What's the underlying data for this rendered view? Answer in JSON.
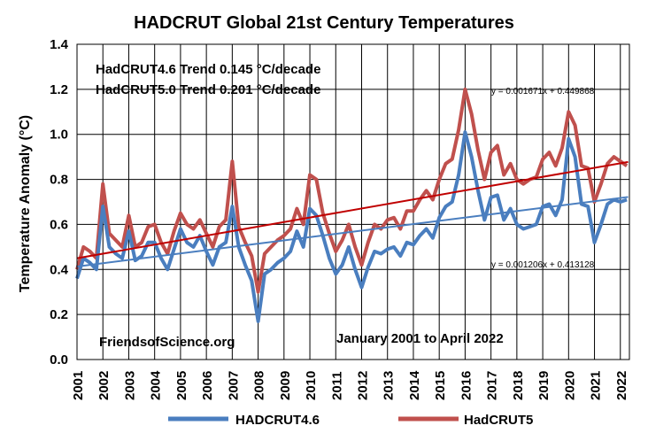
{
  "chart_data": {
    "type": "line",
    "title": "HADCRUT Global 21st Century Temperatures",
    "ylabel": "Temperature Anomaly (°C)",
    "xlabel": "",
    "ylim": [
      0.0,
      1.4
    ],
    "yticks": [
      "0.0",
      "0.2",
      "0.4",
      "0.6",
      "0.8",
      "1.0",
      "1.2",
      "1.4"
    ],
    "xticks": [
      "2001",
      "2002",
      "2003",
      "2004",
      "2005",
      "2006",
      "2007",
      "2008",
      "2009",
      "2010",
      "2011",
      "2012",
      "2013",
      "2014",
      "2015",
      "2016",
      "2017",
      "2018",
      "2019",
      "2020",
      "2021",
      "2022"
    ],
    "grid": true,
    "legend_position": "bottom",
    "annotations": {
      "trend_hadcrut4": "HadCRUT4.6 Trend 0.145 °C/decade",
      "trend_hadcrut5": "HadCRUT5.0 Trend 0.201 °C/decade",
      "source": "FriendsofScience.org",
      "period": "January 2001 to April 2022",
      "eq_hadcrut5": "y = 0.001671x + 0.449868",
      "eq_hadcrut4": "y = 0.001206x + 0.413128"
    },
    "series": [
      {
        "name": "HADCRUT4.6",
        "color": "#4a7ebf",
        "x": [
          2001.0,
          2001.25,
          2001.5,
          2001.75,
          2002.0,
          2002.25,
          2002.5,
          2002.75,
          2003.0,
          2003.25,
          2003.5,
          2003.75,
          2004.0,
          2004.25,
          2004.5,
          2004.75,
          2005.0,
          2005.25,
          2005.5,
          2005.75,
          2006.0,
          2006.25,
          2006.5,
          2006.75,
          2007.0,
          2007.25,
          2007.5,
          2007.75,
          2008.0,
          2008.25,
          2008.5,
          2008.75,
          2009.0,
          2009.25,
          2009.5,
          2009.75,
          2010.0,
          2010.25,
          2010.5,
          2010.75,
          2011.0,
          2011.25,
          2011.5,
          2011.75,
          2012.0,
          2012.25,
          2012.5,
          2012.75,
          2013.0,
          2013.25,
          2013.5,
          2013.75,
          2014.0,
          2014.25,
          2014.5,
          2014.75,
          2015.0,
          2015.25,
          2015.5,
          2015.75,
          2016.0,
          2016.25,
          2016.5,
          2016.75,
          2017.0,
          2017.25,
          2017.5,
          2017.75,
          2018.0,
          2018.25,
          2018.5,
          2018.75,
          2019.0,
          2019.25,
          2019.5,
          2019.75,
          2020.0,
          2020.25,
          2020.5,
          2020.75,
          2021.0,
          2021.25,
          2021.5,
          2021.75,
          2022.0,
          2022.25
        ],
        "values": [
          0.36,
          0.45,
          0.43,
          0.4,
          0.68,
          0.5,
          0.47,
          0.45,
          0.57,
          0.44,
          0.46,
          0.52,
          0.52,
          0.45,
          0.4,
          0.49,
          0.58,
          0.52,
          0.5,
          0.55,
          0.48,
          0.42,
          0.5,
          0.52,
          0.68,
          0.5,
          0.42,
          0.35,
          0.17,
          0.38,
          0.4,
          0.43,
          0.45,
          0.48,
          0.57,
          0.5,
          0.67,
          0.64,
          0.55,
          0.45,
          0.38,
          0.42,
          0.5,
          0.4,
          0.32,
          0.41,
          0.48,
          0.47,
          0.49,
          0.5,
          0.46,
          0.52,
          0.51,
          0.55,
          0.58,
          0.54,
          0.63,
          0.68,
          0.7,
          0.82,
          1.01,
          0.9,
          0.75,
          0.62,
          0.72,
          0.73,
          0.62,
          0.67,
          0.6,
          0.58,
          0.59,
          0.6,
          0.68,
          0.69,
          0.64,
          0.71,
          0.98,
          0.9,
          0.69,
          0.68,
          0.52,
          0.6,
          0.69,
          0.71,
          0.7,
          0.71
        ]
      },
      {
        "name": "HadCRUT5",
        "color": "#c0504d",
        "x": [
          2001.0,
          2001.25,
          2001.5,
          2001.75,
          2002.0,
          2002.25,
          2002.5,
          2002.75,
          2003.0,
          2003.25,
          2003.5,
          2003.75,
          2004.0,
          2004.25,
          2004.5,
          2004.75,
          2005.0,
          2005.25,
          2005.5,
          2005.75,
          2006.0,
          2006.25,
          2006.5,
          2006.75,
          2007.0,
          2007.25,
          2007.5,
          2007.75,
          2008.0,
          2008.25,
          2008.5,
          2008.75,
          2009.0,
          2009.25,
          2009.5,
          2009.75,
          2010.0,
          2010.25,
          2010.5,
          2010.75,
          2011.0,
          2011.25,
          2011.5,
          2011.75,
          2012.0,
          2012.25,
          2012.5,
          2012.75,
          2013.0,
          2013.25,
          2013.5,
          2013.75,
          2014.0,
          2014.25,
          2014.5,
          2014.75,
          2015.0,
          2015.25,
          2015.5,
          2015.75,
          2016.0,
          2016.25,
          2016.5,
          2016.75,
          2017.0,
          2017.25,
          2017.5,
          2017.75,
          2018.0,
          2018.25,
          2018.5,
          2018.75,
          2019.0,
          2019.25,
          2019.5,
          2019.75,
          2020.0,
          2020.25,
          2020.5,
          2020.75,
          2021.0,
          2021.25,
          2021.5,
          2021.75,
          2022.0,
          2022.25
        ],
        "values": [
          0.4,
          0.5,
          0.48,
          0.45,
          0.78,
          0.56,
          0.53,
          0.5,
          0.64,
          0.5,
          0.52,
          0.59,
          0.6,
          0.52,
          0.47,
          0.57,
          0.65,
          0.6,
          0.58,
          0.62,
          0.56,
          0.5,
          0.59,
          0.62,
          0.88,
          0.59,
          0.52,
          0.46,
          0.3,
          0.47,
          0.5,
          0.53,
          0.55,
          0.58,
          0.67,
          0.6,
          0.82,
          0.8,
          0.65,
          0.56,
          0.48,
          0.53,
          0.6,
          0.5,
          0.42,
          0.52,
          0.6,
          0.58,
          0.62,
          0.63,
          0.58,
          0.66,
          0.66,
          0.71,
          0.75,
          0.71,
          0.8,
          0.87,
          0.89,
          1.02,
          1.2,
          1.09,
          0.93,
          0.8,
          0.92,
          0.95,
          0.82,
          0.87,
          0.8,
          0.78,
          0.8,
          0.81,
          0.89,
          0.92,
          0.86,
          0.94,
          1.1,
          1.04,
          0.86,
          0.85,
          0.7,
          0.78,
          0.87,
          0.9,
          0.88,
          0.86
        ]
      }
    ],
    "trendlines": [
      {
        "series": "HadCRUT5",
        "slope": 0.001671,
        "intercept": 0.449868,
        "color": "#c00000"
      },
      {
        "series": "HADCRUT4.6",
        "slope": 0.001206,
        "intercept": 0.413128,
        "color": "#4a7ebf"
      }
    ]
  }
}
